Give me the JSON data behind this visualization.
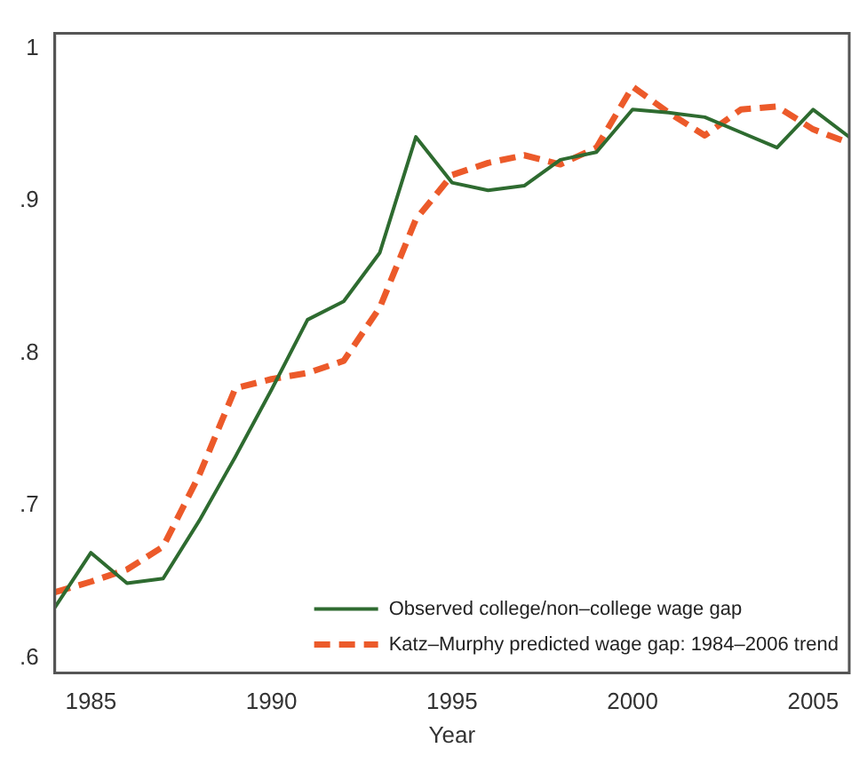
{
  "chart_data": {
    "type": "line",
    "xlabel": "Year",
    "x": [
      1984,
      1985,
      1986,
      1987,
      1988,
      1989,
      1990,
      1991,
      1992,
      1993,
      1994,
      1995,
      1996,
      1997,
      1998,
      1999,
      2000,
      2001,
      2002,
      2003,
      2004,
      2005,
      2006
    ],
    "series": [
      {
        "name": "Observed college/non–college wage gap",
        "color": "#2e6b30",
        "line_style": "solid",
        "values": [
          0.633,
          0.669,
          0.649,
          0.652,
          0.69,
          0.732,
          0.776,
          0.822,
          0.834,
          0.866,
          0.942,
          0.912,
          0.907,
          0.91,
          0.927,
          0.932,
          0.96,
          0.958,
          0.955,
          0.945,
          0.935,
          0.96,
          0.942
        ]
      },
      {
        "name": "Katz–Murphy predicted wage gap: 1984–2006 trend",
        "color": "#ec5a2a",
        "line_style": "dashed",
        "values": [
          0.643,
          0.65,
          0.658,
          0.673,
          0.72,
          0.777,
          0.783,
          0.787,
          0.795,
          0.83,
          0.888,
          0.917,
          0.925,
          0.93,
          0.924,
          0.935,
          0.975,
          0.958,
          0.943,
          0.96,
          0.962,
          0.947,
          0.938
        ]
      }
    ],
    "xlim": [
      1984,
      2006
    ],
    "xticks": [
      1985,
      1990,
      1995,
      2000,
      2005
    ],
    "ylim": [
      0.59,
      1.01
    ],
    "yticks": [
      {
        "value": 0.6,
        "label": ".6"
      },
      {
        "value": 0.7,
        "label": ".7"
      },
      {
        "value": 0.8,
        "label": ".8"
      },
      {
        "value": 0.9,
        "label": ".9"
      },
      1
    ],
    "grid": false,
    "legend": "bottom right",
    "marker": "none"
  }
}
